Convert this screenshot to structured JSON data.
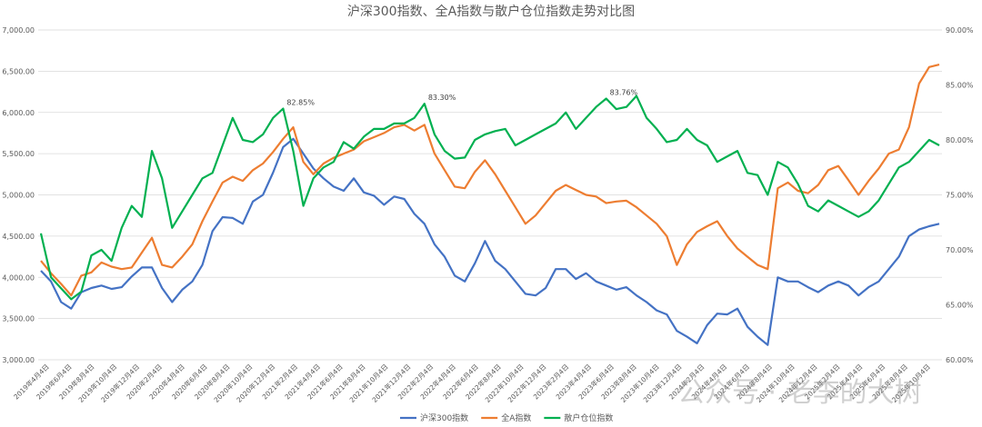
{
  "chart_data": {
    "type": "line",
    "title": "沪深300指数、全A指数与散户仓位指数走势对比图",
    "y_left": {
      "min": 3000,
      "max": 7000,
      "ticks": [
        "3,000.00",
        "3,500.00",
        "4,000.00",
        "4,500.00",
        "5,000.00",
        "5,500.00",
        "6,000.00",
        "6,500.00",
        "7,000.00"
      ]
    },
    "y_right": {
      "min": 60,
      "max": 90,
      "ticks": [
        "60.00%",
        "65.00%",
        "70.00%",
        "75.00%",
        "80.00%",
        "85.00%",
        "90.00%"
      ]
    },
    "x_labels": [
      "2019年4月4日",
      "2019年6月4日",
      "2019年8月4日",
      "2019年10月4日",
      "2019年12月4日",
      "2020年2月4日",
      "2020年4月4日",
      "2020年6月4日",
      "2020年8月4日",
      "2020年10月4日",
      "2020年12月4日",
      "2021年2月4日",
      "2021年4月4日",
      "2021年6月4日",
      "2021年8月4日",
      "2021年10月4日",
      "2021年12月4日",
      "2022年2月4日",
      "2022年4月4日",
      "2022年6月4日",
      "2022年8月4日",
      "2022年10月4日",
      "2022年12月4日",
      "2023年2月4日",
      "2023年4月4日",
      "2023年6月4日",
      "2023年8月4日",
      "2023年10月4日",
      "2023年12月4日",
      "2024年2月4日",
      "2024年4月4日",
      "2024年6月4日",
      "2024年8月4日",
      "2024年10月4日",
      "2024年12月4日",
      "2025年2月4日",
      "2025年4月4日",
      "2025年6月4日",
      "2025年8月4日",
      "2025年10月4日"
    ],
    "series": [
      {
        "name": "沪深300指数",
        "axis": "left",
        "color": "#4472C4",
        "values": [
          4080,
          3950,
          3700,
          3620,
          3820,
          3870,
          3900,
          3860,
          3880,
          4010,
          4120,
          4120,
          3870,
          3700,
          3850,
          3950,
          4150,
          4560,
          4730,
          4720,
          4650,
          4920,
          5000,
          5270,
          5580,
          5680,
          5500,
          5320,
          5200,
          5100,
          5050,
          5200,
          5030,
          4990,
          4880,
          4980,
          4950,
          4770,
          4650,
          4400,
          4250,
          4020,
          3950,
          4170,
          4440,
          4200,
          4100,
          3950,
          3800,
          3780,
          3870,
          4100,
          4100,
          3980,
          4050,
          3950,
          3900,
          3850,
          3880,
          3780,
          3700,
          3600,
          3550,
          3350,
          3280,
          3200,
          3420,
          3560,
          3550,
          3620,
          3400,
          3280,
          3180,
          4000,
          3950,
          3950,
          3880,
          3820,
          3900,
          3950,
          3900,
          3780,
          3880,
          3950,
          4100,
          4250,
          4500,
          4580,
          4620,
          4650
        ]
      },
      {
        "name": "全A指数",
        "axis": "left",
        "color": "#ED7D31",
        "values": [
          4200,
          4050,
          3920,
          3780,
          4020,
          4060,
          4180,
          4130,
          4100,
          4120,
          4300,
          4480,
          4150,
          4120,
          4250,
          4400,
          4680,
          4920,
          5150,
          5220,
          5170,
          5300,
          5380,
          5520,
          5680,
          5820,
          5400,
          5250,
          5380,
          5450,
          5500,
          5550,
          5650,
          5700,
          5750,
          5820,
          5850,
          5780,
          5850,
          5500,
          5300,
          5100,
          5080,
          5280,
          5420,
          5250,
          5050,
          4850,
          4650,
          4750,
          4900,
          5050,
          5120,
          5060,
          5000,
          4980,
          4900,
          4920,
          4930,
          4850,
          4750,
          4650,
          4500,
          4150,
          4400,
          4550,
          4620,
          4680,
          4500,
          4350,
          4250,
          4150,
          4100,
          5080,
          5150,
          5050,
          5020,
          5120,
          5300,
          5350,
          5180,
          5000,
          5170,
          5320,
          5500,
          5550,
          5820,
          6350,
          6550,
          6580
        ]
      },
      {
        "name": "散户仓位指数",
        "axis": "right",
        "color": "#00B050",
        "values": [
          71.5,
          67.5,
          66.5,
          65.5,
          66.2,
          69.5,
          70.0,
          69.0,
          72.0,
          74.0,
          73.0,
          79.0,
          76.5,
          72.0,
          73.5,
          75.0,
          76.5,
          77.0,
          79.5,
          82.0,
          80.0,
          79.8,
          80.5,
          82.0,
          82.85,
          79.0,
          74.0,
          76.5,
          77.5,
          78.0,
          79.8,
          79.2,
          80.3,
          81.0,
          81.0,
          81.5,
          81.5,
          82.0,
          83.3,
          80.5,
          79.0,
          78.3,
          78.4,
          80.0,
          80.5,
          80.8,
          81.0,
          79.5,
          80.0,
          80.5,
          81.0,
          81.5,
          82.5,
          81.0,
          82.0,
          83.0,
          83.76,
          82.8,
          83.0,
          84.0,
          82.0,
          81.0,
          79.8,
          80.0,
          81.0,
          80.0,
          79.5,
          78.0,
          78.5,
          79.0,
          77.0,
          76.8,
          75.0,
          78.0,
          77.5,
          76.0,
          74.0,
          73.5,
          74.5,
          74.0,
          73.5,
          73.0,
          73.5,
          74.5,
          76.0,
          77.5,
          78.0,
          79.0,
          80.0,
          79.5
        ]
      }
    ],
    "annotations": [
      {
        "text": "82.85%",
        "series": 2,
        "index": 24
      },
      {
        "text": "83.30%",
        "series": 2,
        "index": 38
      },
      {
        "text": "83.76%",
        "series": 2,
        "index": 56
      }
    ]
  },
  "watermark": "公众号 · 老李的大树"
}
